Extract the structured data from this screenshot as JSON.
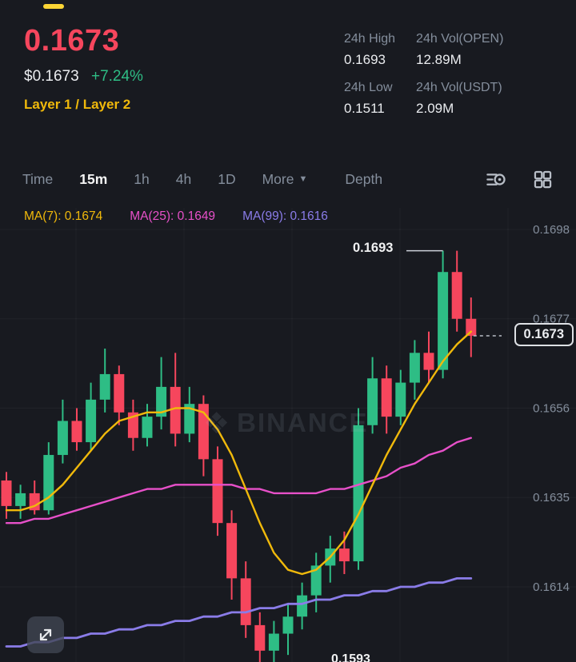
{
  "brand": {
    "watermark": "BINANCE"
  },
  "header": {
    "last_price": "0.1673",
    "fiat_price": "$0.1673",
    "change_pct": "+7.24%",
    "tags": "Layer 1 / Layer 2",
    "stats": [
      {
        "label": "24h High",
        "value": "0.1693"
      },
      {
        "label": "24h Vol(OPEN)",
        "value": "12.89M"
      },
      {
        "label": "24h Low",
        "value": "0.1511"
      },
      {
        "label": "24h Vol(USDT)",
        "value": "2.09M"
      }
    ]
  },
  "toolbar": {
    "items": [
      "Time",
      "15m",
      "1h",
      "4h",
      "1D",
      "More",
      "Depth"
    ],
    "active": "15m"
  },
  "ma_legend": [
    {
      "text": "MA(7): 0.1674"
    },
    {
      "text": "MA(25): 0.1649"
    },
    {
      "text": "MA(99): 0.1616"
    }
  ],
  "chart_data": {
    "type": "candlestick",
    "interval": "15m",
    "y_ticks": [
      "0.1698",
      "0.1677",
      "0.1656",
      "0.1635",
      "0.1614"
    ],
    "high_label": {
      "text": "0.1693",
      "candle_index": 31
    },
    "last_price_label": "0.1673",
    "low_label": "0.1593",
    "legend_position": "top-left",
    "grid": true,
    "colors": {
      "up": "#2EBD85",
      "down": "#F6465D",
      "ma7": "#F0B90B",
      "ma25": "#E750C9",
      "ma99": "#8A7CE8",
      "axis_text": "#848E9C",
      "accent_yellow": "#FCD535"
    },
    "candles": [
      [
        0.1639,
        0.1641,
        0.163,
        0.1633
      ],
      [
        0.1633,
        0.1638,
        0.163,
        0.1636
      ],
      [
        0.1636,
        0.1639,
        0.1631,
        0.1632
      ],
      [
        0.1632,
        0.1648,
        0.1631,
        0.1645
      ],
      [
        0.1645,
        0.1658,
        0.1643,
        0.1653
      ],
      [
        0.1653,
        0.1656,
        0.1646,
        0.1648
      ],
      [
        0.1648,
        0.1662,
        0.1646,
        0.1658
      ],
      [
        0.1658,
        0.167,
        0.1655,
        0.1664
      ],
      [
        0.1664,
        0.1666,
        0.1652,
        0.1655
      ],
      [
        0.1655,
        0.1658,
        0.1646,
        0.1649
      ],
      [
        0.1649,
        0.1657,
        0.1647,
        0.1654
      ],
      [
        0.1654,
        0.1668,
        0.1651,
        0.1661
      ],
      [
        0.1661,
        0.1669,
        0.1647,
        0.165
      ],
      [
        0.165,
        0.1661,
        0.1648,
        0.1657
      ],
      [
        0.1657,
        0.1659,
        0.164,
        0.1644
      ],
      [
        0.1644,
        0.1647,
        0.1626,
        0.1629
      ],
      [
        0.1629,
        0.1632,
        0.1611,
        0.1616
      ],
      [
        0.1616,
        0.162,
        0.1602,
        0.1605
      ],
      [
        0.1605,
        0.1608,
        0.1596,
        0.1599
      ],
      [
        0.1599,
        0.1606,
        0.1593,
        0.1603
      ],
      [
        0.1603,
        0.161,
        0.1598,
        0.1607
      ],
      [
        0.1607,
        0.1615,
        0.1604,
        0.1612
      ],
      [
        0.1612,
        0.1622,
        0.1608,
        0.1619
      ],
      [
        0.1619,
        0.1626,
        0.1615,
        0.1623
      ],
      [
        0.1623,
        0.1627,
        0.1617,
        0.162
      ],
      [
        0.162,
        0.1656,
        0.1618,
        0.1652
      ],
      [
        0.1652,
        0.1668,
        0.165,
        0.1663
      ],
      [
        0.1663,
        0.1666,
        0.165,
        0.1654
      ],
      [
        0.1654,
        0.1665,
        0.1652,
        0.1662
      ],
      [
        0.1662,
        0.1672,
        0.1658,
        0.1669
      ],
      [
        0.1669,
        0.1674,
        0.1662,
        0.1665
      ],
      [
        0.1665,
        0.1693,
        0.1663,
        0.1688
      ],
      [
        0.1688,
        0.1693,
        0.1674,
        0.1677
      ],
      [
        0.1677,
        0.1682,
        0.1668,
        0.1673
      ]
    ],
    "ma7": [
      0.1632,
      0.1632,
      0.1633,
      0.1635,
      0.1638,
      0.1642,
      0.1646,
      0.165,
      0.1653,
      0.1654,
      0.1655,
      0.1655,
      0.1656,
      0.1656,
      0.1655,
      0.1651,
      0.1645,
      0.1637,
      0.1629,
      0.1622,
      0.1618,
      0.1617,
      0.1618,
      0.1621,
      0.1625,
      0.1631,
      0.1638,
      0.1645,
      0.1651,
      0.1657,
      0.1662,
      0.1667,
      0.1671,
      0.1674
    ],
    "ma25": [
      0.1629,
      0.1629,
      0.163,
      0.163,
      0.1631,
      0.1632,
      0.1633,
      0.1634,
      0.1635,
      0.1636,
      0.1637,
      0.1637,
      0.1638,
      0.1638,
      0.1638,
      0.1638,
      0.1638,
      0.1637,
      0.1637,
      0.1636,
      0.1636,
      0.1636,
      0.1636,
      0.1637,
      0.1637,
      0.1638,
      0.1639,
      0.164,
      0.1642,
      0.1643,
      0.1645,
      0.1646,
      0.1648,
      0.1649
    ],
    "ma99": [
      0.16,
      0.16,
      0.1601,
      0.1601,
      0.1602,
      0.1602,
      0.1603,
      0.1603,
      0.1604,
      0.1604,
      0.1605,
      0.1605,
      0.1606,
      0.1606,
      0.1607,
      0.1607,
      0.1608,
      0.1608,
      0.1609,
      0.1609,
      0.161,
      0.161,
      0.1611,
      0.1611,
      0.1612,
      0.1612,
      0.1613,
      0.1613,
      0.1614,
      0.1614,
      0.1615,
      0.1615,
      0.1616,
      0.1616
    ]
  }
}
